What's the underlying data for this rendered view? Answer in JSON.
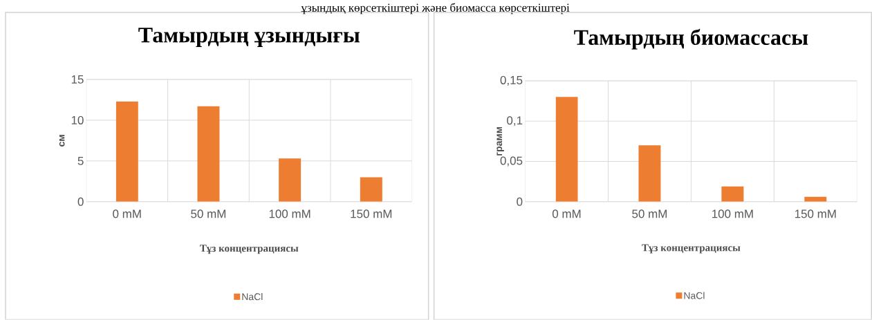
{
  "chart_data": [
    {
      "type": "bar",
      "title": "Тамырдың ұзындығы",
      "xlabel": "Тұз концентрациясы",
      "ylabel": "см",
      "annotations": [
        "ұзындық көрсеткіштері және биомасса көрсеткіштері"
      ],
      "categories": [
        "0 mM",
        "50 mM",
        "100 mM",
        "150 mM"
      ],
      "series": [
        {
          "name": "NaCl",
          "color": "#ed7d31",
          "values": [
            12.3,
            11.7,
            5.3,
            3.0
          ]
        }
      ],
      "ylim": [
        0,
        15
      ],
      "yticks": [
        0,
        5,
        10,
        15
      ],
      "grid": true,
      "legend": "bottom"
    },
    {
      "type": "bar",
      "title": "Тамырдың биомассасы",
      "xlabel": "Тұз концентрациясы",
      "ylabel": "грамм",
      "categories": [
        "0 mM",
        "50 mM",
        "100 mM",
        "150 mM"
      ],
      "series": [
        {
          "name": "NaCl",
          "color": "#ed7d31",
          "values": [
            0.13,
            0.07,
            0.019,
            0.006
          ]
        }
      ],
      "ylim": [
        0,
        0.15
      ],
      "yticks": [
        0,
        {
          "value": 0.05,
          "label": "0,05"
        },
        {
          "value": 0.1,
          "label": "0,1"
        },
        {
          "value": 0.15,
          "label": "0,15"
        }
      ],
      "grid": true,
      "legend": "bottom"
    }
  ]
}
